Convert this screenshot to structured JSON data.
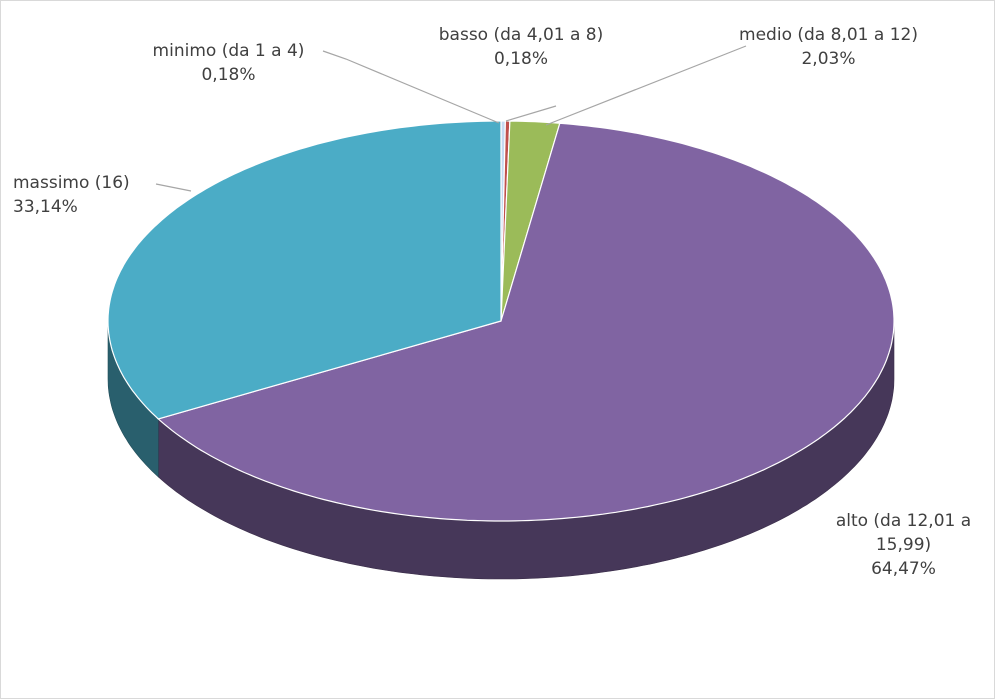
{
  "chart_data": {
    "type": "pie",
    "categories": [
      "minimo (da 1 a 4)",
      "basso (da 4,01 a 8)",
      "medio (da 8,01 a 12)",
      "alto (da 12,01 a 15,99)",
      "massimo (16)"
    ],
    "values": [
      0.18,
      0.18,
      2.03,
      64.47,
      33.14
    ],
    "value_labels": [
      "0,18%",
      "0,18%",
      "2,03%",
      "64,47%",
      "33,14%"
    ],
    "colors": [
      "#c6d9f1",
      "#c0504d",
      "#9bbb59",
      "#8064a2",
      "#4bacc6"
    ]
  }
}
